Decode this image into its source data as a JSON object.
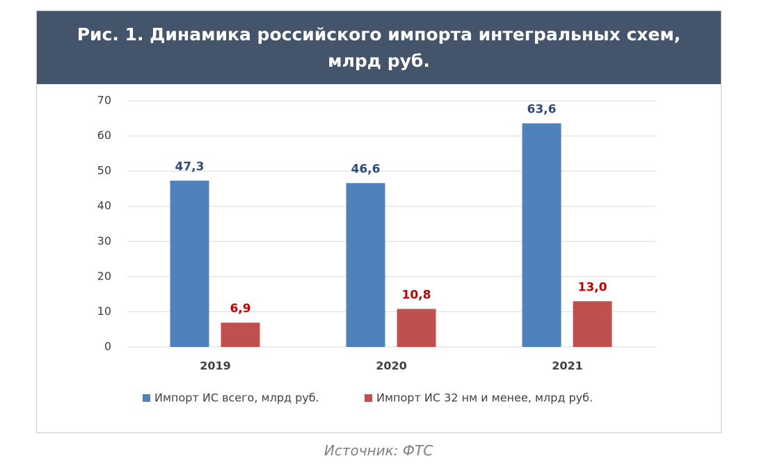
{
  "chart_data": {
    "type": "bar",
    "title": "Рис. 1. Динамика российского импорта интегральных схем, млрд руб.",
    "categories": [
      "2019",
      "2020",
      "2021"
    ],
    "series": [
      {
        "name": "Импорт ИС всего, млрд руб.",
        "color": "#4f81bd",
        "values": [
          47.3,
          46.6,
          63.6
        ],
        "value_labels": [
          "47,3",
          "46,6",
          "63,6"
        ]
      },
      {
        "name": "Импорт ИС 32 нм и менее, млрд руб.",
        "color": "#c0504d",
        "values": [
          6.9,
          10.8,
          13.0
        ],
        "value_labels": [
          "6,9",
          "10,8",
          "13,0"
        ]
      }
    ],
    "ylim": [
      0,
      70
    ],
    "yticks": [
      0,
      10,
      20,
      30,
      40,
      50,
      60,
      70
    ],
    "grid": true,
    "legend": "bottom",
    "source": "Источник: ФТС"
  }
}
